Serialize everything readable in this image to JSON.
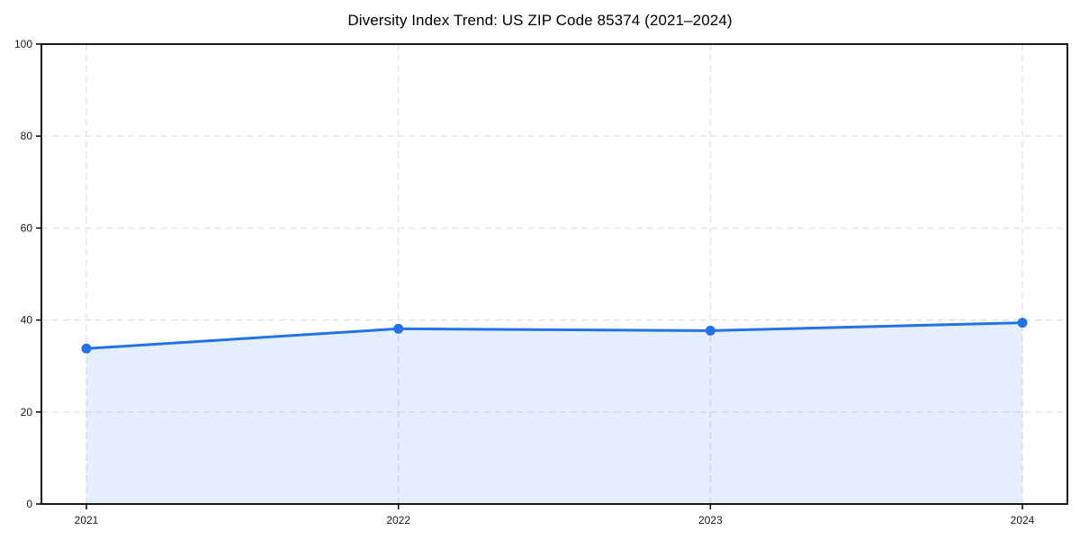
{
  "chart_data": {
    "type": "area",
    "title": "Diversity Index Trend: US ZIP Code 85374 (2021–2024)",
    "categories": [
      "2021",
      "2022",
      "2023",
      "2024"
    ],
    "values": [
      33.8,
      38.1,
      37.7,
      39.4
    ],
    "xlabel": "",
    "ylabel": "",
    "ylim": [
      0,
      100
    ],
    "yticks": [
      0,
      20,
      40,
      60,
      80,
      100
    ],
    "grid": "dashed-both-axes",
    "legend": "none",
    "colors": {
      "line": "#2372e8",
      "marker": "#2372e8",
      "fill": "#2372e8",
      "fill_opacity": 0.12,
      "grid": "#e0e0e0",
      "spine": "#000000",
      "tick_text": "#1a1a1a",
      "title_text": "#000000",
      "background": "#ffffff"
    }
  }
}
